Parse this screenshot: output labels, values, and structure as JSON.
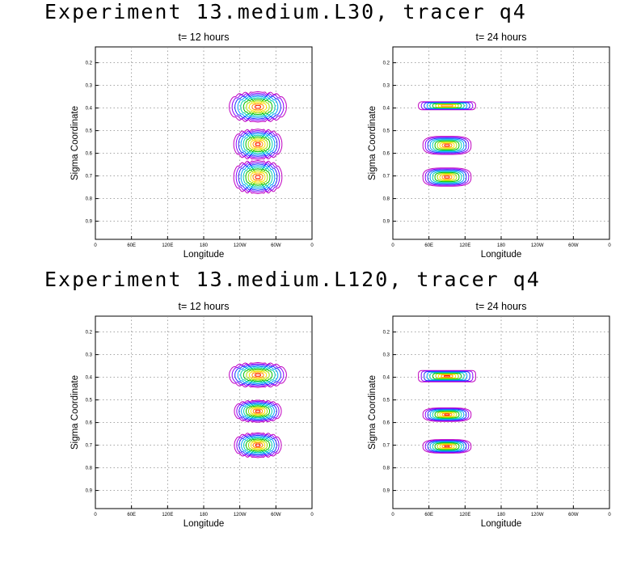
{
  "titles": [
    "Experiment 13.medium.L30, tracer q4",
    "Experiment 13.medium.L120, tracer q4"
  ],
  "chart_data": [
    {
      "type": "contour",
      "group": 0,
      "title": "t= 12 hours",
      "xlabel": "Longitude",
      "ylabel": "Sigma Coordinate",
      "x_ticks": [
        "0",
        "60E",
        "120E",
        "180",
        "120W",
        "60W",
        "0"
      ],
      "y_ticks": [
        "0.2",
        "0.3",
        "0.4",
        "0.5",
        "0.6",
        "0.7",
        "0.8",
        "0.9"
      ],
      "xlim": [
        0,
        360
      ],
      "ylim": [
        0.13,
        0.98
      ],
      "y_inverted": true,
      "grid": true,
      "blobs": [
        {
          "lon": 270,
          "sigma": 0.395,
          "lon_width": 95,
          "sigma_height": 0.11,
          "ripple": true
        },
        {
          "lon": 270,
          "sigma": 0.56,
          "lon_width": 80,
          "sigma_height": 0.11,
          "ripple": true
        },
        {
          "lon": 270,
          "sigma": 0.705,
          "lon_width": 80,
          "sigma_height": 0.12,
          "ripple": true
        }
      ]
    },
    {
      "type": "contour",
      "group": 0,
      "title": "t= 24 hours",
      "xlabel": "Longitude",
      "ylabel": "Sigma Coordinate",
      "x_ticks": [
        "0",
        "60E",
        "120E",
        "180",
        "120W",
        "60W",
        "0"
      ],
      "y_ticks": [
        "0.2",
        "0.3",
        "0.4",
        "0.5",
        "0.6",
        "0.7",
        "0.8",
        "0.9"
      ],
      "xlim": [
        0,
        360
      ],
      "ylim": [
        0.13,
        0.98
      ],
      "y_inverted": true,
      "grid": true,
      "blobs": [
        {
          "lon": 90,
          "sigma": 0.39,
          "lon_width": 95,
          "sigma_height": 0.035,
          "ripple": false,
          "rect": true
        },
        {
          "lon": 90,
          "sigma": 0.565,
          "lon_width": 80,
          "sigma_height": 0.08,
          "ripple": false
        },
        {
          "lon": 90,
          "sigma": 0.705,
          "lon_width": 80,
          "sigma_height": 0.08,
          "ripple": false
        }
      ]
    },
    {
      "type": "contour",
      "group": 1,
      "title": "t= 12 hours",
      "xlabel": "Longitude",
      "ylabel": "Sigma Coordinate",
      "x_ticks": [
        "0",
        "60E",
        "120E",
        "180",
        "120W",
        "60W",
        "0"
      ],
      "y_ticks": [
        "0.2",
        "0.3",
        "0.4",
        "0.5",
        "0.6",
        "0.7",
        "0.8",
        "0.9"
      ],
      "xlim": [
        0,
        360
      ],
      "ylim": [
        0.13,
        0.98
      ],
      "y_inverted": true,
      "grid": true,
      "blobs": [
        {
          "lon": 270,
          "sigma": 0.39,
          "lon_width": 95,
          "sigma_height": 0.09,
          "ripple": true
        },
        {
          "lon": 270,
          "sigma": 0.55,
          "lon_width": 78,
          "sigma_height": 0.08,
          "ripple": true
        },
        {
          "lon": 270,
          "sigma": 0.7,
          "lon_width": 78,
          "sigma_height": 0.09,
          "ripple": true
        }
      ]
    },
    {
      "type": "contour",
      "group": 1,
      "title": "t= 24 hours",
      "xlabel": "Longitude",
      "ylabel": "Sigma Coordinate",
      "x_ticks": [
        "0",
        "60E",
        "120E",
        "180",
        "120W",
        "60W",
        "0"
      ],
      "y_ticks": [
        "0.2",
        "0.3",
        "0.4",
        "0.5",
        "0.6",
        "0.7",
        "0.8",
        "0.9"
      ],
      "xlim": [
        0,
        360
      ],
      "ylim": [
        0.13,
        0.98
      ],
      "y_inverted": true,
      "grid": true,
      "blobs": [
        {
          "lon": 90,
          "sigma": 0.395,
          "lon_width": 95,
          "sigma_height": 0.05,
          "ripple": false,
          "rect": true
        },
        {
          "lon": 90,
          "sigma": 0.565,
          "lon_width": 80,
          "sigma_height": 0.06,
          "ripple": false
        },
        {
          "lon": 90,
          "sigma": 0.705,
          "lon_width": 80,
          "sigma_height": 0.06,
          "ripple": false
        }
      ]
    }
  ],
  "contour_colors": [
    "#c000c0",
    "#8a00ff",
    "#2030ff",
    "#00a0ff",
    "#00d0b0",
    "#00c000",
    "#a0e000",
    "#ffe000",
    "#ff9000",
    "#ff2000"
  ]
}
